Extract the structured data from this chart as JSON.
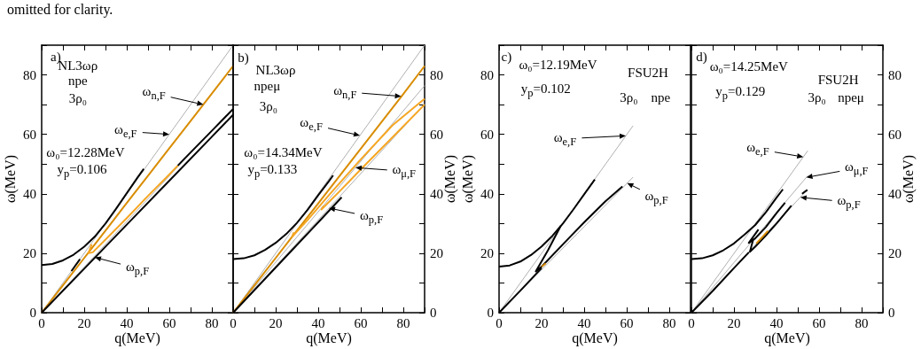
{
  "chart_data": [
    {
      "type": "line",
      "xlabel": "q(MeV)",
      "ylabel": "ω(MeV)",
      "xlim": [
        0,
        90
      ],
      "xticks": [
        0,
        20,
        40,
        60,
        80
      ],
      "ylim": [
        0,
        90
      ],
      "yticks": [
        0,
        20,
        40,
        60,
        80
      ],
      "annotations": [
        "omitted for clarity.",
        "a)",
        "NL3ωρ",
        "npe",
        "3ρ₀",
        "ω₀=12.28MeV",
        "y$_{p}$=0.106",
        {
          "text": "ω$_{n,F}$",
          "x": 76,
          "y": 70
        },
        {
          "text": "ω$_{e,F}$",
          "x": 60,
          "y": 60
        },
        {
          "text": "ω$_{p,F}$",
          "x": 25,
          "y": 18.6
        }
      ],
      "series": [
        {
          "color": "#b0b0b0",
          "x": [
            0,
            90
          ],
          "values": [
            0,
            90
          ]
        },
        {
          "color": "#b0b0b0",
          "x": [
            0,
            90
          ],
          "values": [
            0,
            69
          ]
        },
        {
          "color": "#d98c00",
          "x": [
            0,
            10,
            20,
            22,
            30,
            40,
            50,
            60,
            70,
            80,
            90
          ],
          "values": [
            0,
            9.2,
            18.4,
            20.2,
            27.6,
            36.9,
            46.1,
            55.3,
            64.5,
            73.7,
            83
          ]
        },
        {
          "color": "#f5a623",
          "x": [
            23.5,
            22,
            24,
            30,
            40,
            50,
            60,
            64
          ],
          "values": [
            23,
            20,
            20.3,
            24.6,
            31.8,
            39.3,
            46.5,
            49.5
          ]
        },
        {
          "color": "#000000",
          "x": [
            0,
            5,
            10,
            15,
            20,
            25,
            30,
            35,
            40,
            45,
            48
          ],
          "values": [
            16,
            16.4,
            17.6,
            19.5,
            22.2,
            25.6,
            30,
            35,
            40.2,
            45.4,
            48.4
          ]
        },
        {
          "color": "#000000",
          "x": [
            14,
            18
          ],
          "values": [
            14,
            18
          ]
        },
        {
          "color": "#000000",
          "x": [
            0,
            20,
            40,
            60,
            80,
            90
          ],
          "values": [
            0,
            14.8,
            29.6,
            44.4,
            59.2,
            66.6
          ]
        },
        {
          "color": "#000000",
          "x": [
            64,
            70,
            80,
            90
          ],
          "values": [
            49.5,
            53.9,
            61.2,
            68.5
          ]
        }
      ]
    },
    {
      "type": "line",
      "xlabel": "q(MeV)",
      "y2label": "ω(MeV)",
      "xlim": [
        0,
        90
      ],
      "xticks": [
        0,
        20,
        40,
        60,
        80
      ],
      "y2lim": [
        0,
        90
      ],
      "y2ticks": [
        0,
        20,
        40,
        60,
        80
      ],
      "annotations": [
        "b)",
        "NL3ωρ",
        "npeμ",
        "3ρ₀",
        "ω₀=14.34MeV",
        "y$_{p}$=0.133",
        "ω$_{n,F}$",
        "ω$_{e,F}$",
        "ω$_{μ,F}$",
        "ω$_{p,F}$"
      ],
      "series": [
        {
          "color": "#b0b0b0",
          "axis": "y2",
          "x": [
            0,
            90
          ],
          "values": [
            0,
            90
          ]
        },
        {
          "color": "#b0b0b0",
          "axis": "y2",
          "x": [
            0,
            90
          ],
          "values": [
            0,
            76.4
          ]
        },
        {
          "color": "#b0b0b0",
          "axis": "y2",
          "x": [
            0,
            90
          ],
          "values": [
            0,
            70.2
          ]
        },
        {
          "color": "#d98c00",
          "axis": "y2",
          "x": [
            0,
            10,
            20,
            27.7,
            40,
            60,
            80,
            90
          ],
          "values": [
            0,
            9.2,
            18.4,
            25.5,
            36.8,
            55.2,
            73.6,
            83
          ]
        },
        {
          "color": "#f5a623",
          "axis": "y2",
          "x": [
            28.5,
            27.7,
            35,
            45,
            60,
            75,
            90
          ],
          "values": [
            27,
            25.5,
            31.2,
            39.5,
            51.6,
            63.1,
            72
          ]
        },
        {
          "color": "#f5a623",
          "axis": "y2",
          "x": [
            42.5,
            41.5,
            50,
            60,
            75,
            90
          ],
          "values": [
            35.8,
            34.7,
            40.8,
            48.2,
            59.1,
            70
          ]
        },
        {
          "color": "#000000",
          "axis": "y2",
          "x": [
            0,
            5,
            10,
            15,
            20,
            25,
            30,
            35,
            40,
            45,
            47
          ],
          "values": [
            18,
            18.3,
            19.3,
            21.1,
            23.5,
            26.5,
            30.2,
            34.6,
            39.5,
            44.2,
            46.2
          ]
        },
        {
          "color": "#000000",
          "axis": "y2",
          "x": [
            0,
            20,
            40,
            51
          ],
          "values": [
            0,
            15.2,
            30.4,
            38.8
          ]
        }
      ]
    },
    {
      "type": "line",
      "xlabel": "q(MeV)",
      "ylabel": "ω(MeV)",
      "xlim": [
        0,
        90
      ],
      "xticks": [
        0,
        20,
        40,
        60,
        80
      ],
      "ylim": [
        0,
        90
      ],
      "yticks": [
        0,
        20,
        40,
        60,
        80
      ],
      "annotations": [
        "c)",
        "ω₀=12.19MeV",
        "y$_{p}$=0.102",
        "FSU2H",
        "3ρ₀",
        "npe",
        "ω$_{e,F}$",
        {
          "text": "ω$_{p,F}$",
          "x": 60.2,
          "y": 43.6
        }
      ],
      "series": [
        {
          "color": "#b0b0b0",
          "x": [
            0,
            63
          ],
          "values": [
            0,
            62.9
          ]
        },
        {
          "color": "#b0b0b0",
          "x": [
            0,
            63
          ],
          "values": [
            0,
            45.6
          ]
        },
        {
          "color": "#000000",
          "x": [
            0,
            5,
            10,
            15,
            20,
            25,
            30,
            35,
            40,
            45
          ],
          "values": [
            15.5,
            15.9,
            17.2,
            19.4,
            22.3,
            25.8,
            30,
            34.8,
            39.8,
            44.8
          ]
        },
        {
          "color": "#000000",
          "x": [
            29,
            23,
            17.3,
            20,
            30,
            40,
            50,
            58
          ],
          "values": [
            29.2,
            21,
            13.9,
            15.5,
            23,
            30.4,
            37.5,
            42.5
          ]
        },
        {
          "color": "#000000",
          "x": [
            0,
            10,
            20
          ],
          "values": [
            0,
            7.4,
            15
          ]
        },
        {
          "color": "#d98c00",
          "x": [
            20,
            22
          ],
          "values": [
            15.5,
            16.6
          ]
        }
      ]
    },
    {
      "type": "line",
      "xlabel": "q(MeV)",
      "y2label": "ω(MeV)",
      "xlim": [
        0,
        90
      ],
      "xticks": [
        0,
        20,
        40,
        60,
        80
      ],
      "y2lim": [
        0,
        90
      ],
      "y2ticks": [
        0,
        20,
        40,
        60,
        80
      ],
      "annotations": [
        "d)",
        "ω₀=14.25MeV",
        "y$_{p}$=0.129",
        "FSU2H",
        "3ρ₀",
        "npeμ",
        "ω$_{e,F}$",
        "ω$_{μ,F}$",
        "ω$_{p,F}$"
      ],
      "series": [
        {
          "color": "#b0b0b0",
          "axis": "y2",
          "x": [
            0,
            54.7
          ],
          "values": [
            0,
            54.5
          ]
        },
        {
          "color": "#b0b0b0",
          "axis": "y2",
          "x": [
            0,
            54.7
          ],
          "values": [
            0,
            46.1
          ]
        },
        {
          "color": "#b0b0b0",
          "axis": "y2",
          "x": [
            0,
            53
          ],
          "values": [
            0,
            40.2
          ]
        },
        {
          "color": "#000000",
          "axis": "y2",
          "x": [
            0,
            5,
            10,
            15,
            20,
            25,
            30,
            35,
            40,
            43
          ],
          "values": [
            18,
            18.3,
            19.3,
            21,
            23.3,
            26.3,
            29.5,
            33.8,
            38.7,
            41.5
          ]
        },
        {
          "color": "#000000",
          "axis": "y2",
          "x": [
            31.5,
            27,
            30,
            35,
            40,
            44
          ],
          "values": [
            28,
            23.5,
            25,
            28.8,
            33.5,
            37
          ]
        },
        {
          "color": "#000000",
          "axis": "y2",
          "x": [
            29,
            27.5,
            30,
            35,
            40,
            47
          ],
          "values": [
            24.5,
            20.5,
            22.2,
            26,
            30,
            36
          ]
        },
        {
          "color": "#000000",
          "axis": "y2",
          "x": [
            0,
            10,
            20,
            27
          ],
          "values": [
            0,
            7.3,
            15,
            20.3
          ]
        },
        {
          "color": "#000000",
          "axis": "y2",
          "x": [
            52,
            54.5
          ],
          "values": [
            40,
            41.3
          ]
        },
        {
          "color": "#d98c00",
          "axis": "y2",
          "x": [
            30.5,
            36
          ],
          "values": [
            23.3,
            27.5
          ]
        }
      ]
    }
  ]
}
